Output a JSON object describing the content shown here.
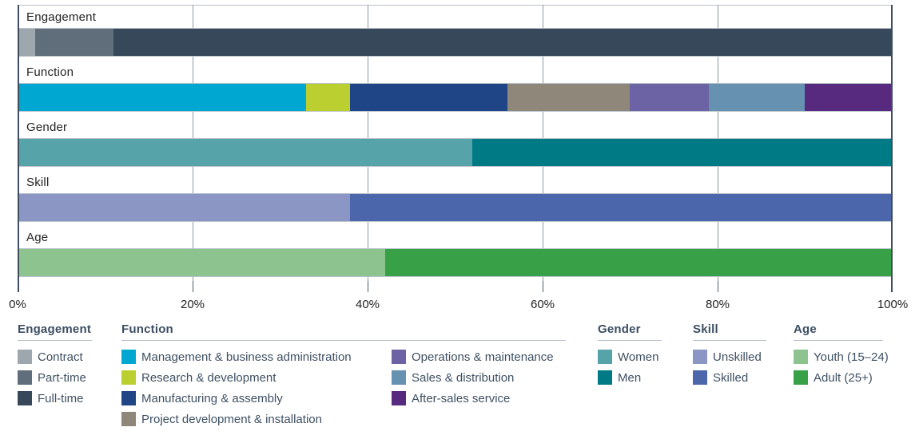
{
  "chart_data": {
    "type": "bar",
    "stacked": true,
    "orientation": "horizontal",
    "unit": "%",
    "title": "",
    "xlabel": "",
    "ylabel": "",
    "xlim": [
      0,
      100
    ],
    "grid": true,
    "legend_position": "bottom",
    "x_ticks": [
      "0%",
      "20%",
      "40%",
      "60%",
      "80%",
      "100%"
    ],
    "x_tick_values": [
      0,
      20,
      40,
      60,
      80,
      100
    ],
    "categories": [
      "Engagement",
      "Function",
      "Gender",
      "Skill",
      "Age"
    ],
    "rows": [
      {
        "label": "Engagement",
        "segments": [
          {
            "name": "Contract",
            "value": 2,
            "color": "#9ea7ae"
          },
          {
            "name": "Part-time",
            "value": 9,
            "color": "#5f6e7a"
          },
          {
            "name": "Full-time",
            "value": 89,
            "color": "#37485a"
          }
        ]
      },
      {
        "label": "Function",
        "segments": [
          {
            "name": "Management & business administration",
            "value": 33,
            "color": "#00a7d0"
          },
          {
            "name": "Research & development",
            "value": 5,
            "color": "#bccf30"
          },
          {
            "name": "Manufacturing & assembly",
            "value": 18,
            "color": "#1f4586"
          },
          {
            "name": "Project development & installation",
            "value": 14,
            "color": "#8f877a"
          },
          {
            "name": "Operations & maintenance",
            "value": 9,
            "color": "#6c63a5"
          },
          {
            "name": "Sales & distribution",
            "value": 11,
            "color": "#6691b1"
          },
          {
            "name": "After-sales service",
            "value": 10,
            "color": "#572a7f"
          }
        ]
      },
      {
        "label": "Gender",
        "segments": [
          {
            "name": "Women",
            "value": 52,
            "color": "#57a3aa"
          },
          {
            "name": "Men",
            "value": 48,
            "color": "#007b86"
          }
        ]
      },
      {
        "label": "Skill",
        "segments": [
          {
            "name": "Unskilled",
            "value": 38,
            "color": "#8b96c4"
          },
          {
            "name": "Skilled",
            "value": 62,
            "color": "#4b66ab"
          }
        ]
      },
      {
        "label": "Age",
        "segments": [
          {
            "name": "Youth (15–24)",
            "value": 42,
            "color": "#8dc38f"
          },
          {
            "name": "Adult (25+)",
            "value": 58,
            "color": "#38a047"
          }
        ]
      }
    ],
    "legend": {
      "groups": [
        {
          "key": "engagement",
          "title": "Engagement",
          "items": [
            {
              "label": "Contract",
              "color": "#9ea7ae"
            },
            {
              "label": "Part-time",
              "color": "#5f6e7a"
            },
            {
              "label": "Full-time",
              "color": "#37485a"
            }
          ]
        },
        {
          "key": "function",
          "title": "Function",
          "items": [
            {
              "label": "Management & business administration",
              "color": "#00a7d0"
            },
            {
              "label": "Research & development",
              "color": "#bccf30"
            },
            {
              "label": "Manufacturing & assembly",
              "color": "#1f4586"
            },
            {
              "label": "Project development & installation",
              "color": "#8f877a"
            },
            {
              "label": "Operations & maintenance",
              "color": "#6c63a5"
            },
            {
              "label": "Sales & distribution",
              "color": "#6691b1"
            },
            {
              "label": "After-sales service",
              "color": "#572a7f"
            }
          ]
        },
        {
          "key": "gender",
          "title": "Gender",
          "items": [
            {
              "label": "Women",
              "color": "#57a3aa"
            },
            {
              "label": "Men",
              "color": "#007b86"
            }
          ]
        },
        {
          "key": "skill",
          "title": "Skill",
          "items": [
            {
              "label": "Unskilled",
              "color": "#8b96c4"
            },
            {
              "label": "Skilled",
              "color": "#4b66ab"
            }
          ]
        },
        {
          "key": "age",
          "title": "Age",
          "items": [
            {
              "label": "Youth (15–24)",
              "color": "#8dc38f"
            },
            {
              "label": "Adult (25+)",
              "color": "#38a047"
            }
          ]
        }
      ]
    }
  }
}
